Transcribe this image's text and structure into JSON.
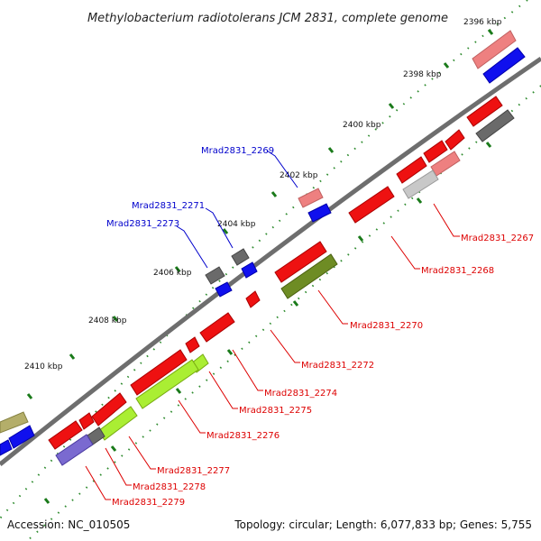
{
  "title": "Methylobacterium radiotolerans JCM 2831, complete genome",
  "accession": "Accession: NC_010505",
  "summary": "Topology: circular; Length: 6,077,833 bp; Genes: 5,755",
  "ticks": [
    "2396 kbp",
    "2398 kbp",
    "2400 kbp",
    "2402 kbp",
    "2404 kbp",
    "2406 kbp",
    "2408 kbp",
    "2410 kbp"
  ],
  "genes_forward": [
    "Mrad2831_2269",
    "Mrad2831_2271",
    "Mrad2831_2273"
  ],
  "genes_reverse": [
    "Mrad2831_2267",
    "Mrad2831_2268",
    "Mrad2831_2270",
    "Mrad2831_2272",
    "Mrad2831_2274",
    "Mrad2831_2275",
    "Mrad2831_2276",
    "Mrad2831_2277",
    "Mrad2831_2278",
    "Mrad2831_2279"
  ],
  "colors": {
    "backbone": "#6e6e6e",
    "tick_dots": "#2e8b2e",
    "forward_label": "#0000cc",
    "reverse_label": "#dd0000",
    "red": "#ee1111",
    "pink": "#ee8080",
    "blue": "#1010ee",
    "grey": "#6a6a6a",
    "light_grey": "#c8c8c8",
    "olive": "#6e8c24",
    "lime": "#aaee33",
    "purple": "#7a6ad0",
    "khaki": "#b4ae6a"
  }
}
